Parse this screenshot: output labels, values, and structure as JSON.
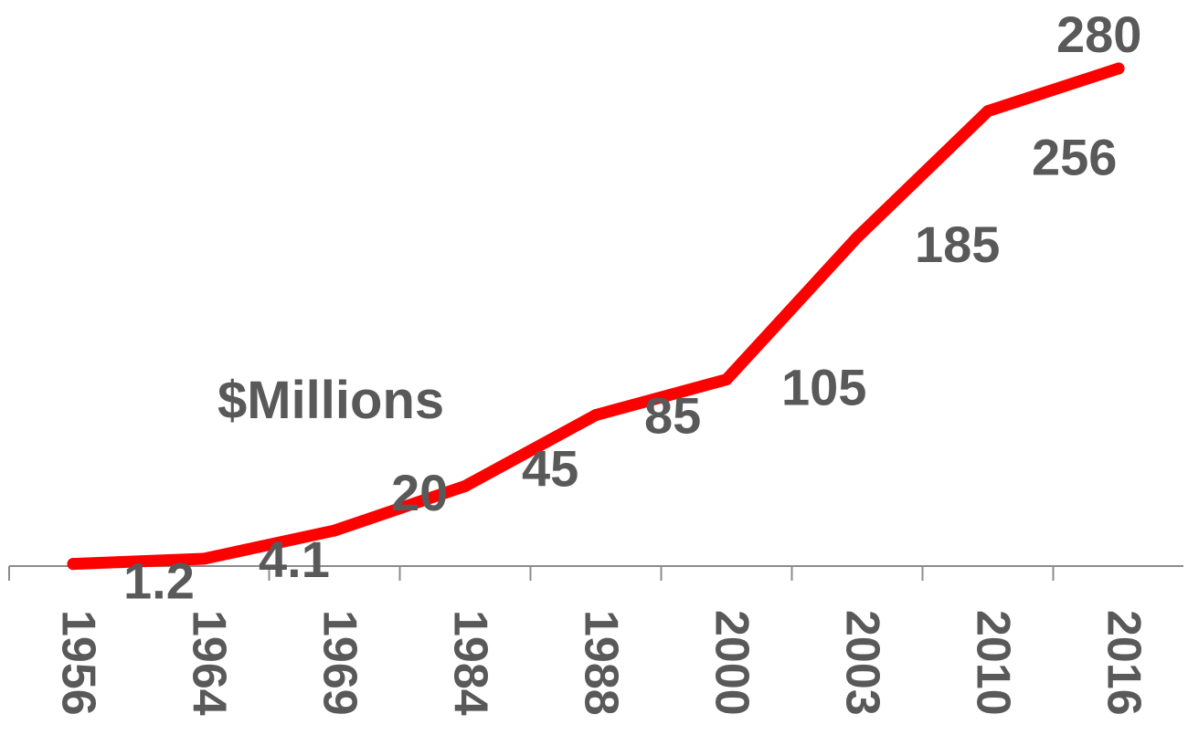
{
  "chart_data": {
    "type": "line",
    "categories": [
      "1956",
      "1964",
      "1969",
      "1984",
      "1988",
      "2000",
      "2003",
      "2010",
      "2016"
    ],
    "series": [
      {
        "values": [
          1.2,
          4.1,
          20,
          45,
          85,
          105,
          185,
          256,
          280
        ]
      }
    ],
    "data_labels": [
      "1.2",
      "4.1",
      "20",
      "45",
      "85",
      "105",
      "185",
      "256",
      "280"
    ],
    "annotation": "$Millions",
    "ylim": [
      0,
      280
    ],
    "grid": false,
    "legend": "none",
    "colors": {
      "line": "#ff0000",
      "text": "#595959",
      "axis": "#8c8c8c"
    }
  }
}
